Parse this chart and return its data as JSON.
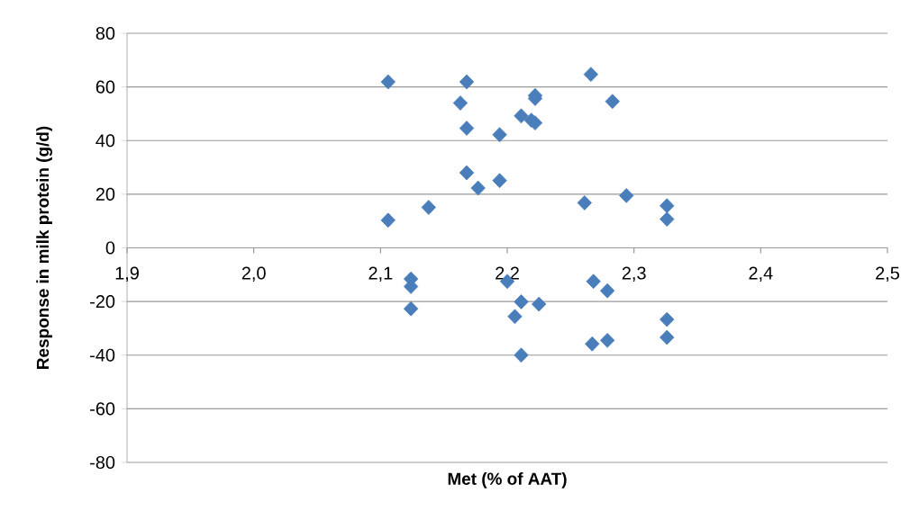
{
  "chart_data": {
    "type": "scatter",
    "xlabel": "Met (% of AAT)",
    "ylabel": "Response in milk protein (g/d)",
    "x": [
      2.106,
      2.168,
      2.163,
      2.168,
      2.194,
      2.211,
      2.222,
      2.222,
      2.219,
      2.222,
      2.266,
      2.283,
      2.168,
      2.177,
      2.194,
      2.106,
      2.138,
      2.261,
      2.294,
      2.326,
      2.326,
      2.124,
      2.124,
      2.124,
      2.2,
      2.211,
      2.225,
      2.206,
      2.211,
      2.268,
      2.279,
      2.267,
      2.279,
      2.326,
      2.326
    ],
    "values": [
      61.9,
      61.9,
      54.0,
      44.6,
      42.2,
      49.2,
      56.8,
      55.7,
      47.6,
      46.6,
      64.7,
      54.6,
      28.0,
      22.3,
      25.1,
      10.3,
      15.1,
      16.8,
      19.5,
      15.7,
      10.7,
      -11.6,
      -14.4,
      -22.7,
      -12.5,
      -20.1,
      -21.0,
      -25.6,
      -40.0,
      -12.5,
      -16.0,
      -35.8,
      -34.5,
      -26.7,
      -33.4
    ],
    "color": "#4a7ebb",
    "marker": "diamond",
    "grid": "y",
    "xlim": [
      1.9,
      2.5
    ],
    "xticks": [
      {
        "value": 1.9,
        "label": "1,9"
      },
      {
        "value": 2.0,
        "label": "2,0"
      },
      {
        "value": 2.1,
        "label": "2,1"
      },
      {
        "value": 2.2,
        "label": "2,2"
      },
      {
        "value": 2.3,
        "label": "2,3"
      },
      {
        "value": 2.4,
        "label": "2,4"
      },
      {
        "value": 2.5,
        "label": "2,5"
      }
    ],
    "ylim": [
      -80,
      80
    ],
    "yticks": [
      -80,
      -60,
      -40,
      -20,
      0,
      20,
      40,
      60,
      80
    ]
  }
}
